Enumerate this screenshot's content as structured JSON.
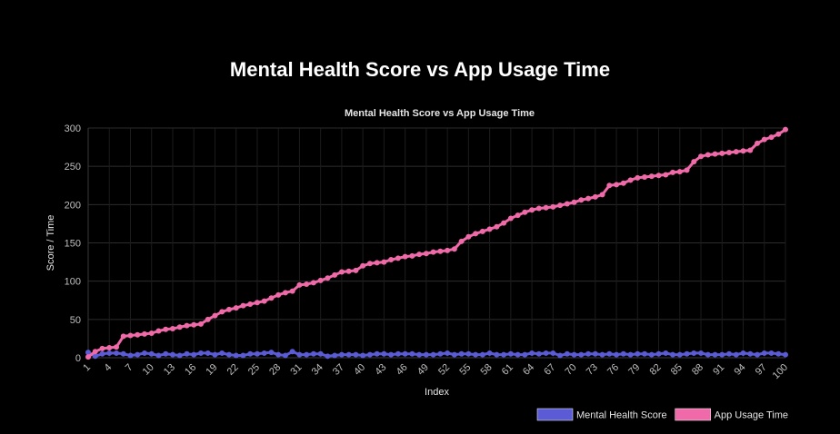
{
  "page": {
    "title": "Mental Health Score vs App Usage Time"
  },
  "chart_data": {
    "type": "line",
    "title": "Mental Health Score vs App Usage Time",
    "xlabel": "Index",
    "ylabel": "Score / Time",
    "ylim": [
      0,
      300
    ],
    "yticks": [
      0,
      50,
      100,
      150,
      200,
      250,
      300
    ],
    "xticks": [
      1,
      4,
      7,
      10,
      13,
      16,
      19,
      22,
      25,
      28,
      31,
      34,
      37,
      40,
      43,
      46,
      49,
      52,
      55,
      58,
      61,
      64,
      67,
      70,
      73,
      76,
      79,
      82,
      85,
      88,
      91,
      94,
      97,
      100
    ],
    "grid": true,
    "legend_position": "bottom-right",
    "x": [
      1,
      2,
      3,
      4,
      5,
      6,
      7,
      8,
      9,
      10,
      11,
      12,
      13,
      14,
      15,
      16,
      17,
      18,
      19,
      20,
      21,
      22,
      23,
      24,
      25,
      26,
      27,
      28,
      29,
      30,
      31,
      32,
      33,
      34,
      35,
      36,
      37,
      38,
      39,
      40,
      41,
      42,
      43,
      44,
      45,
      46,
      47,
      48,
      49,
      50,
      51,
      52,
      53,
      54,
      55,
      56,
      57,
      58,
      59,
      60,
      61,
      62,
      63,
      64,
      65,
      66,
      67,
      68,
      69,
      70,
      71,
      72,
      73,
      74,
      75,
      76,
      77,
      78,
      79,
      80,
      81,
      82,
      83,
      84,
      85,
      86,
      87,
      88,
      89,
      90,
      91,
      92,
      93,
      94,
      95,
      96,
      97,
      98,
      99,
      100
    ],
    "series": [
      {
        "name": "Mental Health Score",
        "color": "#5b5bd6",
        "values": [
          7,
          2,
          5,
          6,
          6,
          5,
          3,
          4,
          6,
          5,
          3,
          5,
          4,
          3,
          5,
          4,
          6,
          6,
          4,
          6,
          4,
          3,
          3,
          5,
          5,
          6,
          7,
          4,
          3,
          8,
          4,
          4,
          5,
          5,
          2,
          3,
          4,
          4,
          4,
          3,
          4,
          5,
          5,
          4,
          5,
          5,
          5,
          4,
          4,
          4,
          5,
          6,
          4,
          5,
          5,
          4,
          4,
          6,
          4,
          4,
          5,
          4,
          4,
          6,
          5,
          6,
          6,
          3,
          5,
          4,
          4,
          5,
          5,
          4,
          5,
          4,
          5,
          4,
          5,
          5,
          4,
          5,
          6,
          4,
          4,
          5,
          6,
          6,
          4,
          4,
          4,
          5,
          4,
          6,
          5,
          4,
          6,
          6,
          5,
          4
        ]
      },
      {
        "name": "App Usage Time",
        "color": "#f06aa9",
        "values": [
          1,
          8,
          12,
          13,
          14,
          28,
          29,
          30,
          31,
          32,
          35,
          37,
          38,
          40,
          42,
          43,
          44,
          50,
          55,
          60,
          63,
          65,
          68,
          70,
          72,
          74,
          78,
          82,
          85,
          87,
          95,
          96,
          98,
          101,
          104,
          108,
          112,
          113,
          114,
          120,
          123,
          124,
          125,
          128,
          130,
          132,
          133,
          135,
          136,
          138,
          139,
          140,
          142,
          152,
          158,
          162,
          165,
          168,
          171,
          176,
          182,
          186,
          190,
          193,
          195,
          196,
          197,
          199,
          201,
          203,
          206,
          208,
          210,
          213,
          225,
          226,
          228,
          232,
          235,
          236,
          237,
          238,
          239,
          242,
          243,
          245,
          256,
          263,
          265,
          266,
          267,
          268,
          269,
          270,
          271,
          280,
          285,
          288,
          292,
          298
        ]
      }
    ]
  }
}
